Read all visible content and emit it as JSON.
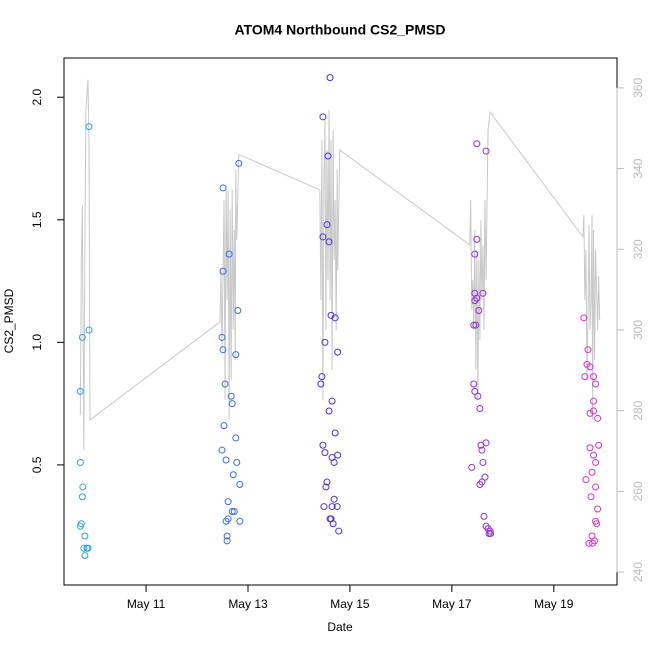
{
  "chart_data": {
    "type": "scatter",
    "title": "ATOM4 Northbound CS2_PMSD",
    "x_label": "Date",
    "y_label": "CS2_PMSD",
    "xlim": [
      9.39,
      20.24
    ],
    "ylim": [
      0.01,
      2.16
    ],
    "y2lim": [
      236.8,
      367.4
    ],
    "xticks": [
      {
        "value": 11,
        "label": "May 11"
      },
      {
        "value": 13,
        "label": "May 13"
      },
      {
        "value": 15,
        "label": "May 15"
      },
      {
        "value": 17,
        "label": "May 17"
      },
      {
        "value": 19,
        "label": "May 19"
      }
    ],
    "yticks": [
      0.5,
      {
        "value": 1,
        "label": "1.0"
      },
      1.5,
      {
        "value": 2,
        "label": "2.0"
      }
    ],
    "y2ticks": [
      240,
      260,
      280,
      300,
      320,
      340,
      360
    ],
    "series": [
      {
        "color": "#2aa4e4",
        "x": [
          9.71,
          9.75,
          9.71,
          9.76,
          9.75,
          9.73,
          9.71,
          9.8,
          9.78,
          9.84,
          9.86,
          9.8,
          9.88,
          9.88
        ],
        "values": [
          0.8,
          1.02,
          0.51,
          0.41,
          0.37,
          0.26,
          0.25,
          0.21,
          0.16,
          0.16,
          0.16,
          0.13,
          1.05,
          1.88
        ]
      },
      {
        "color": "#3a6cf2",
        "x": [
          12.51,
          12.51,
          12.63,
          12.49,
          12.51,
          12.82,
          12.8,
          12.76,
          12.55,
          12.67,
          12.69,
          12.53,
          12.76,
          12.49,
          12.57,
          12.78,
          12.71,
          12.84,
          12.61,
          12.73,
          12.69,
          12.61,
          12.57,
          12.84,
          12.59,
          12.59
        ],
        "values": [
          1.63,
          1.29,
          1.36,
          1.02,
          0.97,
          1.73,
          1.13,
          0.95,
          0.83,
          0.78,
          0.75,
          0.66,
          0.61,
          0.56,
          0.52,
          0.51,
          0.46,
          0.42,
          0.35,
          0.31,
          0.31,
          0.28,
          0.27,
          0.27,
          0.21,
          0.19
        ]
      },
      {
        "color": "#4a2cf0",
        "x": [
          14.61,
          14.47,
          14.57,
          14.55,
          14.47,
          14.59,
          14.63,
          14.71,
          14.76,
          14.51,
          14.45,
          14.43,
          14.65,
          14.59,
          14.71,
          14.47,
          14.76,
          14.51,
          14.65,
          14.69,
          14.55,
          14.53,
          14.69,
          14.75,
          14.65,
          14.49,
          14.61,
          14.63,
          14.67,
          14.78
        ],
        "values": [
          2.08,
          1.92,
          1.76,
          1.48,
          1.43,
          1.41,
          1.11,
          1.1,
          0.96,
          1.0,
          0.86,
          0.83,
          0.76,
          0.72,
          0.63,
          0.58,
          0.54,
          0.55,
          0.53,
          0.51,
          0.43,
          0.41,
          0.36,
          0.33,
          0.33,
          0.33,
          0.28,
          0.28,
          0.26,
          0.23
        ]
      },
      {
        "color": "#9a2ce4",
        "x": [
          17.49,
          17.67,
          17.49,
          17.45,
          17.45,
          17.61,
          17.49,
          17.45,
          17.53,
          17.43,
          17.47,
          17.43,
          17.45,
          17.51,
          17.55,
          17.67,
          17.57,
          17.59,
          17.39,
          17.61,
          17.65,
          17.59,
          17.55,
          17.63,
          17.67,
          17.71,
          17.75,
          17.73,
          17.76
        ],
        "values": [
          1.81,
          1.78,
          1.42,
          1.36,
          1.2,
          1.2,
          1.18,
          1.17,
          1.13,
          1.07,
          1.07,
          0.83,
          0.8,
          0.78,
          0.73,
          0.59,
          0.58,
          0.56,
          0.49,
          0.51,
          0.45,
          0.43,
          0.42,
          0.29,
          0.25,
          0.24,
          0.23,
          0.22,
          0.22
        ]
      },
      {
        "color": "#e02cd6",
        "x": [
          19.59,
          19.67,
          19.65,
          19.71,
          19.61,
          19.78,
          19.82,
          19.78,
          19.71,
          19.78,
          19.86,
          19.88,
          19.71,
          19.78,
          19.82,
          19.75,
          19.63,
          19.82,
          19.73,
          19.86,
          19.82,
          19.84,
          19.75,
          19.8,
          19.69,
          19.76
        ],
        "values": [
          1.1,
          0.97,
          0.91,
          0.9,
          0.86,
          0.86,
          0.83,
          0.76,
          0.71,
          0.72,
          0.69,
          0.58,
          0.57,
          0.54,
          0.51,
          0.47,
          0.44,
          0.41,
          0.37,
          0.32,
          0.27,
          0.26,
          0.21,
          0.19,
          0.18,
          0.18
        ]
      },
      {
        "type": "line",
        "axis": "y2",
        "color": "#c8c8c8",
        "x": [
          9.71,
          9.73,
          9.75,
          9.76,
          9.78,
          9.8,
          9.82,
          9.86,
          9.88,
          9.9,
          12.45,
          12.47,
          12.49,
          12.53,
          12.55,
          12.57,
          12.59,
          12.61,
          12.63,
          12.65,
          12.67,
          12.69,
          12.71,
          12.73,
          12.75,
          12.76,
          12.78,
          12.8,
          12.82,
          12.84,
          14.41,
          14.43,
          14.45,
          14.47,
          14.49,
          14.51,
          14.53,
          14.55,
          14.57,
          14.59,
          14.61,
          14.63,
          14.65,
          14.67,
          14.69,
          14.71,
          14.73,
          14.75,
          14.76,
          14.8,
          17.35,
          17.37,
          17.39,
          17.41,
          17.43,
          17.45,
          17.47,
          17.49,
          17.51,
          17.53,
          17.55,
          17.57,
          17.59,
          17.61,
          17.63,
          17.65,
          17.67,
          17.71,
          17.75,
          19.57,
          19.59,
          19.61,
          19.63,
          19.65,
          19.67,
          19.69,
          19.71,
          19.73,
          19.75,
          19.76,
          19.78,
          19.8,
          19.82,
          19.84,
          19.86,
          19.88,
          19.9
        ],
        "values": [
          278.9,
          317.4,
          331.0,
          307.4,
          270.2,
          322.3,
          354.5,
          362.0,
          347.1,
          277.7,
          302.0,
          314.9,
          295.0,
          332.2,
          282.6,
          335.9,
          307.4,
          334.7,
          277.7,
          329.7,
          287.6,
          334.7,
          300.0,
          324.8,
          292.6,
          339.7,
          322.3,
          332.2,
          343.4,
          343.4,
          334.7,
          307.4,
          347.1,
          282.6,
          335.9,
          352.1,
          300.0,
          344.6,
          312.4,
          354.5,
          307.4,
          347.1,
          290.1,
          349.6,
          317.4,
          332.2,
          300.0,
          339.7,
          314.9,
          344.6,
          321.1,
          332.2,
          305.0,
          312.4,
          300.0,
          324.8,
          290.1,
          319.8,
          282.6,
          317.4,
          297.5,
          327.3,
          307.4,
          321.1,
          300.0,
          332.2,
          312.4,
          349.6,
          354.0,
          323.1,
          328.5,
          307.4,
          319.8,
          287.6,
          302.5,
          326.0,
          300.0,
          307.4,
          328.5,
          277.7,
          324.8,
          292.6,
          319.8,
          309.9,
          300.0,
          313.4,
          302.5
        ]
      }
    ]
  }
}
